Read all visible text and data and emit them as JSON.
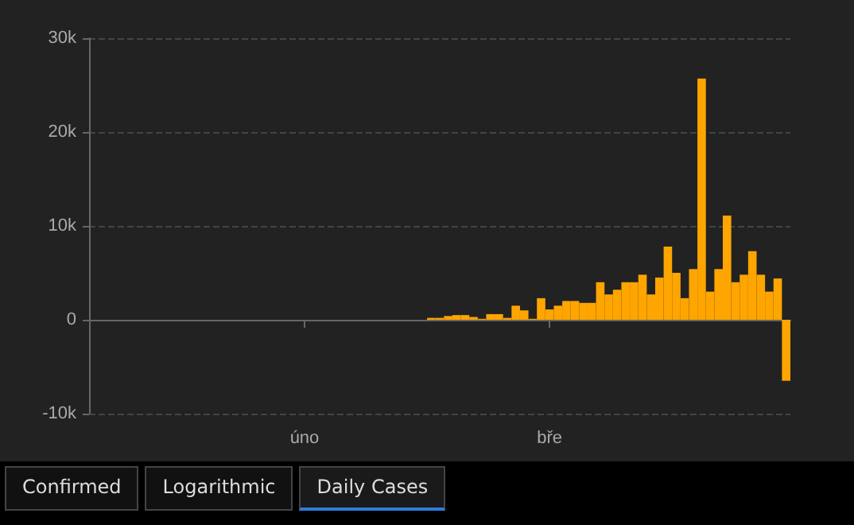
{
  "chart_data": {
    "type": "bar",
    "color": "#ffa500",
    "categories": [
      null,
      null,
      null,
      null,
      null,
      null,
      null,
      null,
      null,
      null,
      null,
      null,
      null,
      null,
      null,
      null,
      null,
      null,
      null,
      null,
      null,
      null,
      null,
      null,
      null,
      "úno",
      null,
      null,
      null,
      null,
      null,
      null,
      null,
      null,
      null,
      null,
      null,
      null,
      null,
      null,
      null,
      null,
      null,
      null,
      null,
      null,
      null,
      null,
      null,
      null,
      null,
      null,
      null,
      null,
      "bře",
      null,
      null,
      null,
      null,
      null,
      null,
      null,
      null,
      null,
      null,
      null,
      null,
      null,
      null,
      null,
      null,
      null,
      null,
      null,
      null,
      null,
      null,
      null,
      null,
      null,
      null,
      null,
      null
    ],
    "values": [
      0,
      0,
      0,
      0,
      0,
      0,
      0,
      0,
      0,
      0,
      0,
      0,
      0,
      0,
      0,
      0,
      0,
      0,
      0,
      0,
      0,
      0,
      0,
      0,
      0,
      0,
      0,
      0,
      0,
      0,
      0,
      0,
      0,
      0,
      0,
      0,
      0,
      0,
      0,
      0,
      200,
      200,
      400,
      500,
      500,
      300,
      100,
      600,
      600,
      200,
      1500,
      1000,
      100,
      2300,
      1100,
      1500,
      2000,
      2000,
      1800,
      1800,
      4000,
      2700,
      3200,
      4000,
      4000,
      4800,
      2700,
      4500,
      7800,
      5000,
      2300,
      5400,
      25700,
      3000,
      5400,
      11100,
      4000,
      4800,
      7300,
      4800,
      3000,
      4400,
      -6500
    ],
    "ylim": [
      -10000,
      30000
    ],
    "yticks": [
      {
        "value": -10000,
        "label": "-10k"
      },
      {
        "value": 0,
        "label": "0"
      },
      {
        "value": 10000,
        "label": "10k"
      },
      {
        "value": 20000,
        "label": "20k"
      },
      {
        "value": 30000,
        "label": "30k"
      }
    ],
    "grid": "y",
    "annotations": [
      "Confirmed",
      "Logarithmic",
      "Daily Cases"
    ]
  }
}
